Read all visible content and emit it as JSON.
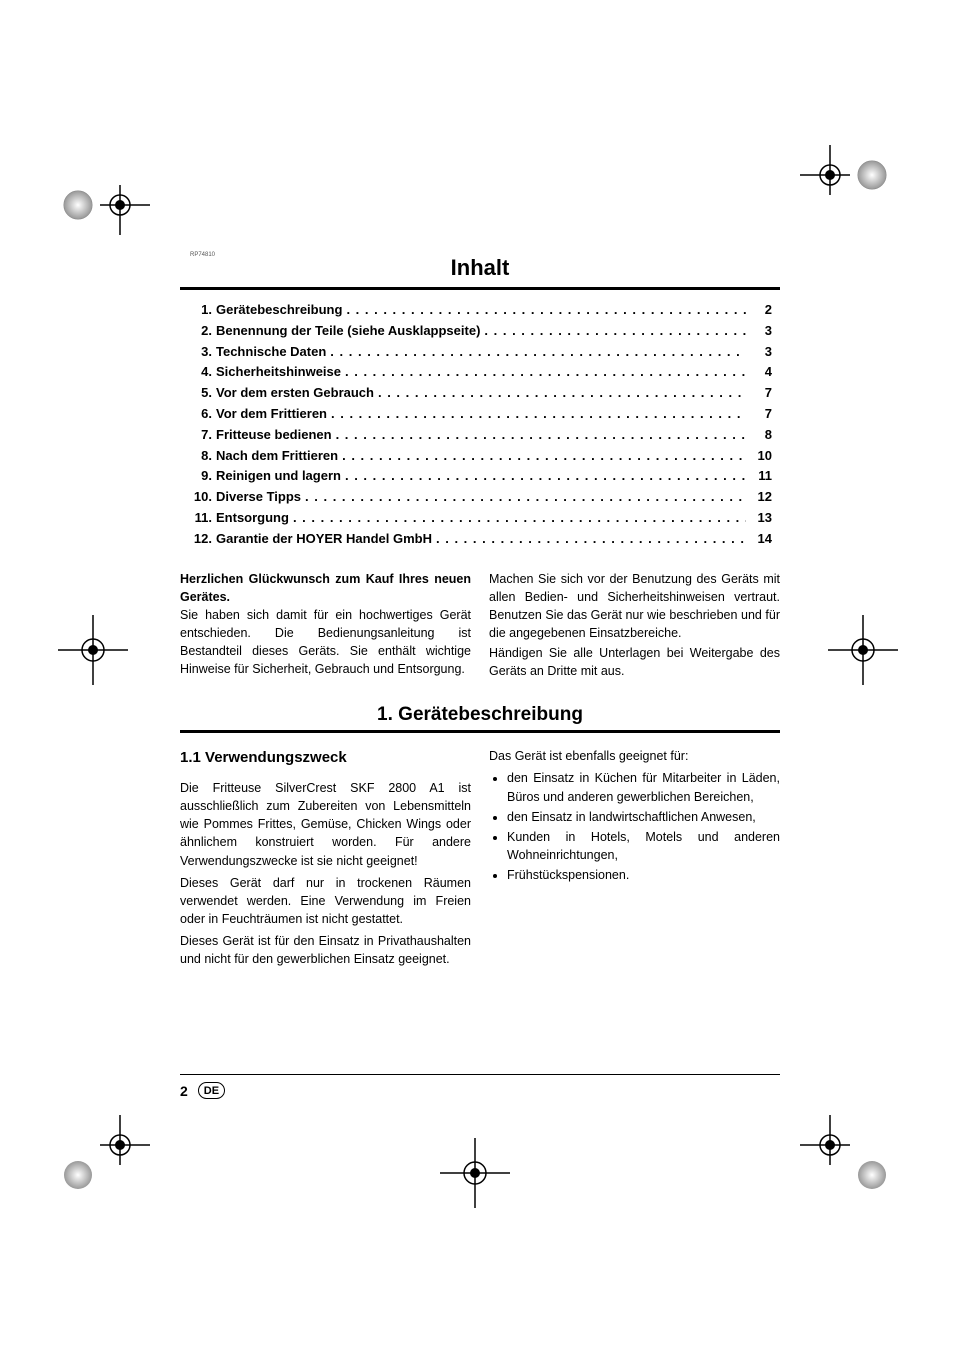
{
  "tinyLabel": "RP74810",
  "inhaltTitle": "Inhalt",
  "toc": [
    {
      "n": "1.",
      "label": "Gerätebeschreibung",
      "p": "2"
    },
    {
      "n": "2.",
      "label": "Benennung der Teile (siehe Ausklappseite)",
      "p": "3"
    },
    {
      "n": "3.",
      "label": "Technische Daten",
      "p": "3"
    },
    {
      "n": "4.",
      "label": "Sicherheitshinweise",
      "p": "4"
    },
    {
      "n": "5.",
      "label": "Vor dem ersten Gebrauch",
      "p": "7"
    },
    {
      "n": "6.",
      "label": "Vor dem Frittieren",
      "p": "7"
    },
    {
      "n": "7.",
      "label": "Fritteuse bedienen",
      "p": "8"
    },
    {
      "n": "8.",
      "label": "Nach dem Frittieren",
      "p": "10"
    },
    {
      "n": "9.",
      "label": "Reinigen und lagern",
      "p": "11"
    },
    {
      "n": "10.",
      "label": "Diverse Tipps",
      "p": "12"
    },
    {
      "n": "11.",
      "label": "Entsorgung",
      "p": "13"
    },
    {
      "n": "12.",
      "label": "Garantie der HOYER Handel GmbH",
      "p": "14"
    }
  ],
  "congrats": "Herzlichen Glückwunsch zum Kauf Ihres neuen Gerätes.",
  "introP1": "Sie haben sich damit für ein hochwertiges Gerät entschieden. Die Bedienungsanleitung ist Bestandteil dieses Geräts. Sie enthält wichtige Hinweise für Sicherheit, Gebrauch und Entsorgung.",
  "introP2": "Machen Sie sich vor der Benutzung des Geräts mit allen Bedien- und Sicherheitshinweisen vertraut. Benutzen Sie das Gerät nur wie beschrieben und für die angegebenen Einsatzbereiche.",
  "introP3": "Händigen Sie alle Unterlagen bei Weitergabe des Geräts an Dritte mit aus.",
  "sec1Title": "1. Gerätebeschreibung",
  "sub11": "1.1 Verwendungszweck",
  "s1p1": "Die Fritteuse SilverCrest SKF 2800 A1 ist ausschließlich zum Zubereiten von Lebensmitteln wie Pommes Frittes, Gemüse, Chicken Wings oder ähnlichem konstruiert worden. Für andere Verwendungszwecke ist sie nicht geeignet!",
  "s1p2": "Dieses Gerät darf nur in trockenen Räumen verwendet werden. Eine Verwendung im Freien oder in Feuchträumen ist nicht gestattet.",
  "s1p3": "Dieses Gerät ist für den Einsatz in Privathaushalten und nicht für den gewerblichen Einsatz geeignet.",
  "s1p4": "Das Gerät ist ebenfalls geeignet für:",
  "bullets": [
    "den Einsatz in Küchen für Mitarbeiter in Läden, Büros und anderen gewerblichen Bereichen,",
    "den Einsatz in landwirtschaftlichen Anwesen,",
    "Kunden in Hotels, Motels und anderen Wohneinrichtungen,",
    "Frühstückspensionen."
  ],
  "footerPage": "2",
  "footerLang": "DE",
  "colors": {
    "text": "#000000",
    "bg": "#ffffff",
    "line": "#000000"
  },
  "fonts": {
    "title_size_pt": 22,
    "section_size_pt": 19,
    "sub_size_pt": 15,
    "body_size_pt": 12.5,
    "toc_size_pt": 13
  }
}
